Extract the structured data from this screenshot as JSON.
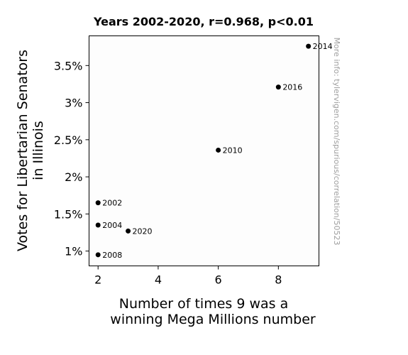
{
  "chart_data": {
    "type": "scatter",
    "title": "Years 2002-2020, r=0.968, p<0.01",
    "xlabel": [
      "Number of times 9 was a",
      "winning Mega Millions number"
    ],
    "ylabel": [
      "Votes for Libertarian Senators",
      "in Illinois"
    ],
    "xlim": [
      1.7,
      9.35
    ],
    "ylim": [
      0.8,
      3.9
    ],
    "x_ticks": [
      2,
      4,
      6,
      8
    ],
    "x_tick_labels": [
      "2",
      "4",
      "6",
      "8"
    ],
    "y_ticks": [
      1.0,
      1.5,
      2.0,
      2.5,
      3.0,
      3.5
    ],
    "y_tick_labels": [
      "1%",
      "1.5%",
      "2%",
      "2.5%",
      "3%",
      "3.5%"
    ],
    "grid": false,
    "point_color": "#000000",
    "points": [
      {
        "label": "2002",
        "x": 2,
        "y": 1.65
      },
      {
        "label": "2004",
        "x": 2,
        "y": 1.35
      },
      {
        "label": "2008",
        "x": 2,
        "y": 0.95
      },
      {
        "label": "2010",
        "x": 6,
        "y": 2.36
      },
      {
        "label": "2014",
        "x": 9,
        "y": 3.76
      },
      {
        "label": "2016",
        "x": 8,
        "y": 3.21
      },
      {
        "label": "2020",
        "x": 3,
        "y": 1.27
      }
    ],
    "watermark": "More info: tylervigen.com/spurious/correlation/5052​3"
  }
}
